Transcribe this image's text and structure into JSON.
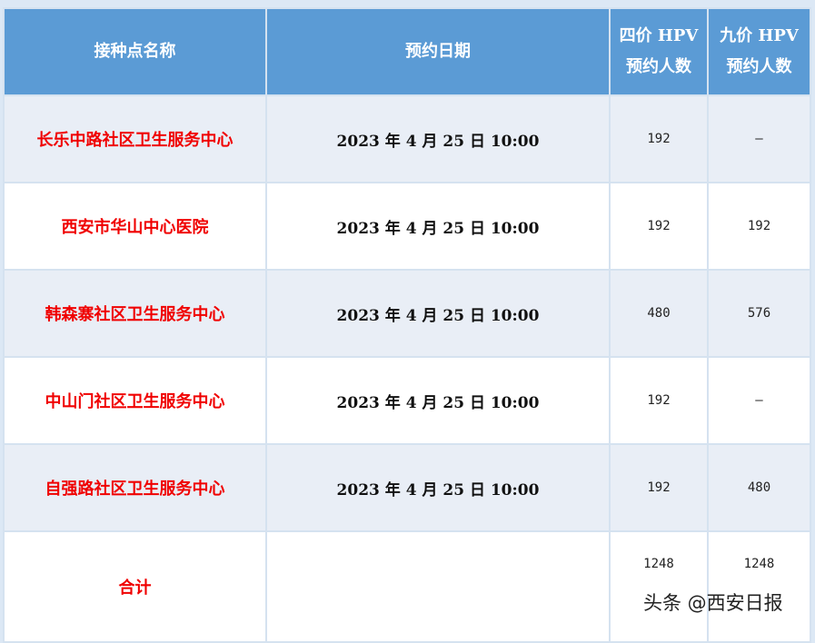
{
  "header": {
    "col1": "接种点名称",
    "col2": "预约日期",
    "col3_l1": "四价 HPV",
    "col3_l2": "预约人数",
    "col4_l1": "九价 HPV",
    "col4_l2": "预约人数"
  },
  "rows": [
    {
      "name": "长乐中路社区卫生服务中心",
      "date": "2023 年 4 月 25 日 10:00",
      "four": "192",
      "nine": "–"
    },
    {
      "name": "西安市华山中心医院",
      "date": "2023 年 4 月 25 日 10:00",
      "four": "192",
      "nine": "192"
    },
    {
      "name": "韩森寨社区卫生服务中心",
      "date": "2023 年 4 月 25 日 10:00",
      "four": "480",
      "nine": "576"
    },
    {
      "name": "中山门社区卫生服务中心",
      "date": "2023 年 4 月 25 日 10:00",
      "four": "192",
      "nine": "–"
    },
    {
      "name": "自强路社区卫生服务中心",
      "date": "2023 年 4 月 25 日 10:00",
      "four": "192",
      "nine": "480"
    }
  ],
  "total": {
    "label": "合计",
    "four": "1248",
    "nine": "1248"
  },
  "watermark": "头条 @西安日报",
  "colors": {
    "header_bg": "#5b9bd5",
    "name_text": "#f00000",
    "row_alt": "#e9eef6"
  }
}
